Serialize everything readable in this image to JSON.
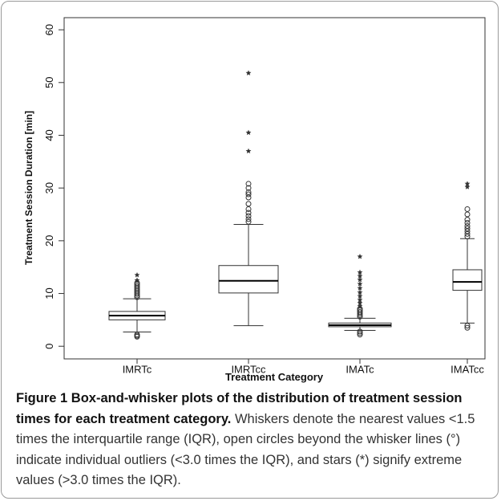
{
  "chart_data": {
    "type": "box",
    "x_label": "Treatment Category",
    "y_label": "Treatment Session Duration [min]",
    "categories": [
      "IMRTc",
      "IMRTcc",
      "IMATc",
      "IMATcc"
    ],
    "ylim": [
      -2.4,
      62.3
    ],
    "yticks": [
      0,
      10,
      20,
      30,
      40,
      50,
      60
    ],
    "color": "#333333",
    "boxes": [
      {
        "low": 2.7,
        "q1": 5.0,
        "median": 5.8,
        "q3": 6.6,
        "high": 9.0,
        "outliers": [
          1.8,
          2.0,
          2.2,
          9.3,
          9.6,
          9.9,
          10.2,
          10.5,
          10.8,
          11.1,
          11.4,
          11.7,
          12.0
        ],
        "extremes": [
          12.5,
          13.5
        ]
      },
      {
        "low": 3.9,
        "q1": 10.1,
        "median": 12.4,
        "q3": 15.3,
        "high": 23.1,
        "outliers": [
          23.6,
          24.1,
          24.7,
          25.3,
          26.0,
          27.0,
          28.2,
          28.8,
          29.2,
          30.0,
          30.8
        ],
        "extremes": [
          37.0,
          40.5,
          51.8
        ]
      },
      {
        "low": 3.0,
        "q1": 3.7,
        "median": 4.0,
        "q3": 4.4,
        "high": 5.3,
        "outliers": [
          2.2,
          2.5,
          2.8,
          5.6,
          5.9,
          6.2,
          6.5,
          6.8,
          7.1
        ],
        "extremes": [
          7.6,
          8.2,
          8.8,
          9.5,
          10.2,
          11.0,
          11.8,
          12.6,
          13.3,
          14.0,
          17.0
        ]
      },
      {
        "low": 4.4,
        "q1": 10.6,
        "median": 12.2,
        "q3": 14.5,
        "high": 20.4,
        "outliers": [
          3.5,
          3.9,
          20.8,
          21.3,
          21.8,
          22.3,
          22.8,
          23.4,
          24.0,
          25.0,
          26.0
        ],
        "extremes": [
          30.2,
          30.8
        ]
      }
    ]
  },
  "caption": {
    "label": "Figure 1",
    "title": "Box-and-whisker plots of the distribution of treatment session times for each treatment category.",
    "text": "Whiskers denote the nearest values <1.5 times the interquartile range (IQR), open circles beyond the whisker lines (°) indicate individual outliers (<3.0 times the IQR), and stars (*) signify extreme values (>3.0 times the IQR)."
  }
}
